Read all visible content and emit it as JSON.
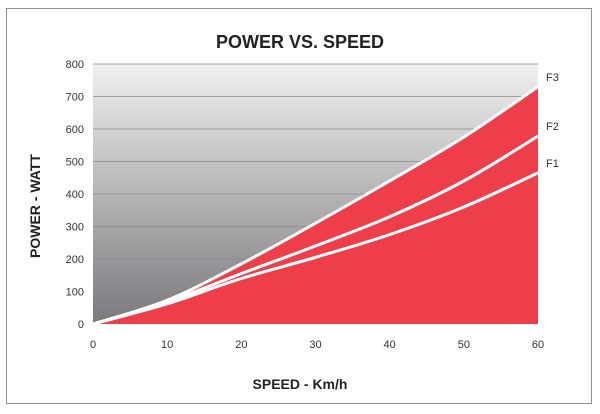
{
  "chart_data": {
    "type": "area",
    "title": "POWER VS. SPEED",
    "xlabel": "SPEED - Km/h",
    "ylabel": "POWER - WATT",
    "xlim": [
      0,
      60
    ],
    "ylim": [
      0,
      800
    ],
    "xticks": [
      0,
      10,
      20,
      30,
      40,
      50,
      60
    ],
    "yticks": [
      0,
      100,
      200,
      300,
      400,
      500,
      600,
      700,
      800
    ],
    "grid": true,
    "series": [
      {
        "name": "F1",
        "x": [
          0,
          10,
          20,
          30,
          40,
          50,
          60
        ],
        "values": [
          0,
          62,
          140,
          205,
          275,
          360,
          465
        ]
      },
      {
        "name": "F2",
        "x": [
          0,
          10,
          20,
          30,
          40,
          50,
          60
        ],
        "values": [
          0,
          68,
          155,
          240,
          330,
          440,
          578
        ]
      },
      {
        "name": "F3",
        "x": [
          0,
          10,
          20,
          30,
          40,
          50,
          60
        ],
        "values": [
          0,
          73,
          185,
          310,
          440,
          575,
          730
        ]
      }
    ],
    "colors": {
      "fill": "#ee3e4a",
      "curve": "#ffffff",
      "background_top": "#f0f0f0",
      "background_bottom": "#7a7a7c",
      "gridline": "#8a8a8a"
    }
  }
}
